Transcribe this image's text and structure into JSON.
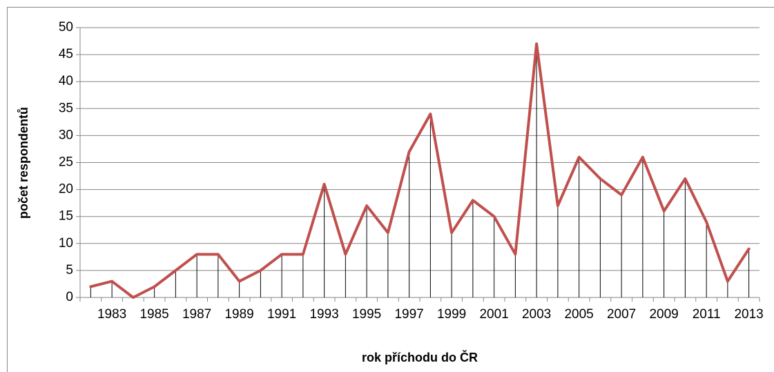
{
  "chart_data": {
    "type": "line",
    "x_label": "rok příchodu do ČR",
    "y_label": "počet respondentů",
    "categories": [
      null,
      "1983",
      null,
      "1985",
      null,
      "1987",
      null,
      "1989",
      null,
      "1991",
      null,
      "1993",
      null,
      "1995",
      null,
      "1997",
      null,
      "1999",
      null,
      "2001",
      null,
      "2003",
      null,
      "2005",
      null,
      "2007",
      null,
      "2009",
      null,
      "2011",
      null,
      "2013"
    ],
    "values": [
      2,
      3,
      0,
      2,
      5,
      8,
      8,
      3,
      5,
      8,
      8,
      21,
      8,
      17,
      12,
      27,
      34,
      12,
      18,
      15,
      8,
      47,
      17,
      26,
      22,
      19,
      26,
      16,
      22,
      14,
      3,
      9
    ],
    "color": "#c0504d",
    "drop_lines": true,
    "ylim": [
      0,
      50
    ],
    "yticks": [
      0,
      5,
      10,
      15,
      20,
      25,
      30,
      35,
      40,
      45,
      50
    ],
    "grid": true
  }
}
